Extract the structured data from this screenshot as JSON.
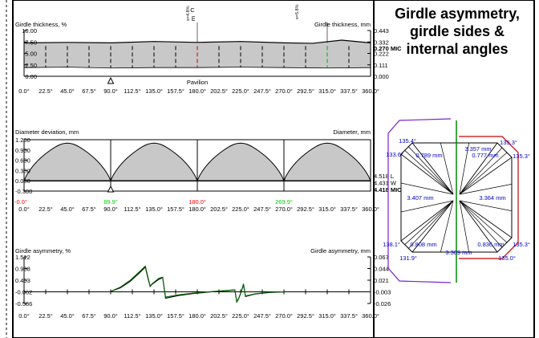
{
  "panel_title": [
    "Girdle asymmetry,",
    "girdle sides &",
    "internal angles"
  ],
  "chart_data": [
    {
      "type": "area",
      "name": "girdle-thickness",
      "ylabel_left": "Girdle thickness, %",
      "ylabel_right": "Girdle thickness, mm",
      "y_ticks_left": [
        "10.00",
        "7.50",
        "5.00",
        "2.50",
        "0.00"
      ],
      "y_ticks_right": [
        "0.443",
        "0.332",
        "0.222",
        "0.111",
        "0.000"
      ],
      "right_value_label": "0.270 MIC",
      "x_ticks": [
        "0.0°",
        "22.5°",
        "45.0°",
        "67.5°",
        "90.0°",
        "112.5°",
        "135.0°",
        "157.5°",
        "180.0°",
        "202.5°",
        "225.0°",
        "247.5°",
        "270.0°",
        "292.5°",
        "315.0°",
        "337.5°",
        "360.0°"
      ],
      "x_range": [
        0,
        360
      ],
      "y_range": [
        0,
        10
      ],
      "x_label": "Pavilion",
      "top_markers": [
        {
          "label": "C",
          "angle": 180,
          "sub": "s=4.8%"
        },
        {
          "label": "m",
          "angle": 180,
          "sub": ""
        },
        {
          "label": "",
          "angle": 315,
          "sub": "s=5.8%"
        }
      ],
      "marker_triangle_angle": 90,
      "upper": [
        [
          0,
          7.3
        ],
        [
          45,
          7.4
        ],
        [
          90,
          7.3
        ],
        [
          135,
          7.6
        ],
        [
          180,
          7.4
        ],
        [
          225,
          7.6
        ],
        [
          270,
          7.3
        ],
        [
          300,
          7.2
        ],
        [
          330,
          7.9
        ],
        [
          360,
          7.3
        ]
      ],
      "lower": [
        [
          0,
          1.9
        ],
        [
          45,
          2.0
        ],
        [
          90,
          1.8
        ],
        [
          135,
          1.9
        ],
        [
          180,
          1.9
        ],
        [
          225,
          2.0
        ],
        [
          270,
          1.9
        ],
        [
          315,
          1.8
        ],
        [
          360,
          1.9
        ]
      ],
      "highlight": [
        {
          "angle": 180,
          "color": "#cc0000"
        },
        {
          "angle": 315,
          "color": "#00aa00"
        }
      ]
    },
    {
      "type": "area",
      "name": "diameter-deviation",
      "ylabel_left": "Diameter deviation, mm",
      "ylabel_right": "Diameter, mm",
      "y_ticks_left": [
        "1.200",
        "0.900",
        "0.600",
        "0.300",
        "0.000",
        "-0.300"
      ],
      "y_range": [
        -0.3,
        1.2
      ],
      "right_values": [
        "4.518 L",
        "4.431 W",
        "4.418 MIC"
      ],
      "x_ticks": [
        "0.0°",
        "22.5°",
        "45.0°",
        "67.5°",
        "90.0°",
        "112.5°",
        "135.0°",
        "157.5°",
        "180.0°",
        "202.5°",
        "225.0°",
        "247.5°",
        "270.0°",
        "292.5°",
        "315.0°",
        "337.5°",
        "360.0°"
      ],
      "colored_x_labels": [
        {
          "label": "-0.0°",
          "angle": 0,
          "color": "#ff0000"
        },
        {
          "label": "89.9°",
          "angle": 90,
          "color": "#00cc00"
        },
        {
          "label": "180.0°",
          "angle": 180,
          "color": "#ff0000"
        },
        {
          "label": "269.9°",
          "angle": 270,
          "color": "#00cc00"
        }
      ],
      "peak_value": 1.1,
      "marker_triangle_angle": 90
    },
    {
      "type": "line",
      "name": "girdle-asymmetry",
      "ylabel_left": "Girdle asymmetry, %",
      "ylabel_right": "Girdle asymmetry, mm",
      "y_ticks_left": [
        "1.512",
        "0.988",
        "0.463",
        "-0.062",
        "-0.586"
      ],
      "y_ticks_right": [
        "0.067",
        "0.044",
        "0.021",
        "-0.003",
        "-0.026"
      ],
      "y_range": [
        -0.586,
        1.512
      ],
      "x_ticks": [
        "0.0°",
        "22.5°",
        "45.0°",
        "67.5°",
        "90.0°",
        "112.5°",
        "135.0°",
        "157.5°",
        "180.0°",
        "202.5°",
        "225.0°",
        "247.5°",
        "270.0°",
        "292.5°",
        "315.0°",
        "337.5°",
        "360.0°"
      ],
      "series": [
        {
          "name": "",
          "color": "#006600",
          "points": [
            [
              89,
              -0.062
            ],
            [
              100,
              0.15
            ],
            [
              110,
              0.45
            ],
            [
              120,
              0.85
            ],
            [
              126,
              1.1
            ],
            [
              129,
              0.55
            ],
            [
              131,
              0.2
            ],
            [
              133,
              0.3
            ],
            [
              140,
              0.55
            ],
            [
              144,
              0.6
            ],
            [
              147,
              -0.3
            ],
            [
              160,
              -0.2
            ],
            [
              175,
              -0.12
            ],
            [
              195,
              -0.05
            ],
            [
              210,
              0.0
            ],
            [
              219,
              0.03
            ],
            [
              221,
              -0.5
            ],
            [
              223,
              -0.35
            ],
            [
              226,
              0.0
            ],
            [
              228,
              0.3
            ],
            [
              230,
              -0.25
            ],
            [
              240,
              -0.15
            ],
            [
              255,
              -0.08
            ],
            [
              270,
              -0.062
            ]
          ]
        },
        {
          "name": "",
          "color": "#000000",
          "points": [
            [
              89,
              -0.062
            ],
            [
              100,
              0.12
            ],
            [
              110,
              0.4
            ],
            [
              120,
              0.8
            ],
            [
              126,
              1.05
            ],
            [
              129,
              0.5
            ],
            [
              131,
              0.18
            ],
            [
              133,
              0.28
            ],
            [
              140,
              0.5
            ],
            [
              144,
              0.58
            ],
            [
              147,
              -0.35
            ],
            [
              160,
              -0.23
            ],
            [
              175,
              -0.14
            ],
            [
              195,
              -0.06
            ],
            [
              210,
              -0.01
            ],
            [
              219,
              0.02
            ],
            [
              221,
              -0.52
            ],
            [
              223,
              -0.37
            ],
            [
              226,
              -0.02
            ],
            [
              228,
              0.27
            ],
            [
              230,
              -0.27
            ],
            [
              240,
              -0.16
            ],
            [
              255,
              -0.09
            ],
            [
              270,
              -0.062
            ]
          ]
        }
      ]
    },
    {
      "type": "diagram",
      "name": "girdle-sides-diagram",
      "angles": [
        {
          "label": "135.4°",
          "color": "#0000cc"
        },
        {
          "label": "135.3°",
          "color": "#0000cc"
        },
        {
          "label": "133.6°",
          "color": "#0000cc"
        },
        {
          "label": "135.3°",
          "color": "#0000cc"
        },
        {
          "label": "138.1°",
          "color": "#0000cc"
        },
        {
          "label": "135.3°",
          "color": "#0000cc"
        },
        {
          "label": "131.9°",
          "color": "#0000cc"
        },
        {
          "label": "135.0°",
          "color": "#0000cc"
        }
      ],
      "sides": [
        {
          "label": "3.357 mm"
        },
        {
          "label": "0.789 mm"
        },
        {
          "label": "0.777 mm"
        },
        {
          "label": "3.407 mm"
        },
        {
          "label": "3.364 mm"
        },
        {
          "label": "0.808 mm"
        },
        {
          "label": "0.836 mm"
        },
        {
          "label": "3.309 mm"
        }
      ],
      "colors": {
        "outline": "#000000",
        "left_outline": "#7722cc",
        "right_outline": "#cc0000",
        "axis": "#008800",
        "label": "#0000cc"
      }
    }
  ]
}
